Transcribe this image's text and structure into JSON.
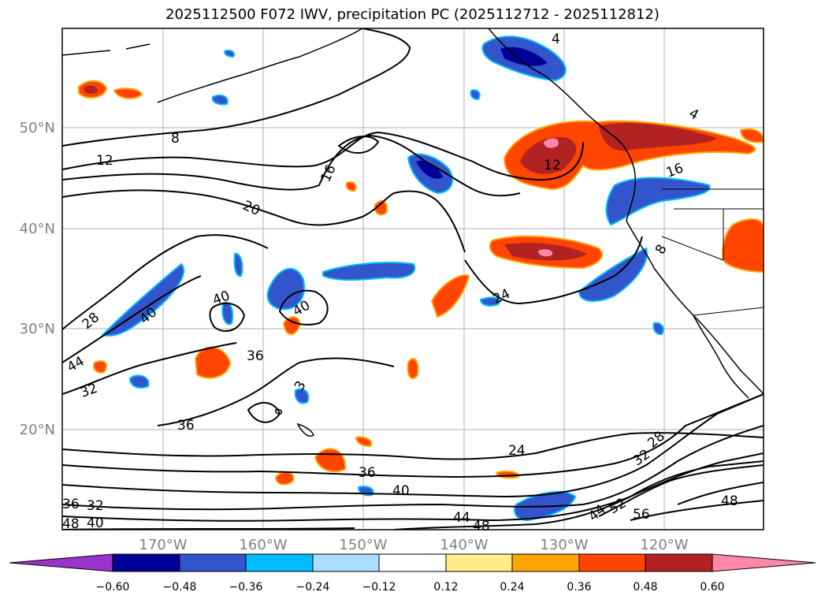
{
  "title": "2025112500 F072 IWV, precipitation PC (2025112712 - 2025112812)",
  "map": {
    "lat_labels": [
      "50°N",
      "40°N",
      "30°N",
      "20°N"
    ],
    "lon_labels": [
      "170°W",
      "160°W",
      "150°W",
      "140°W",
      "130°W",
      "120°W"
    ],
    "gridlines": true,
    "contour_labels": [
      "8",
      "12",
      "16",
      "20",
      "24",
      "28",
      "32",
      "36",
      "40",
      "44",
      "48",
      "52",
      "56",
      "4",
      "16",
      "8",
      "3"
    ]
  },
  "colorbar": {
    "ticks": [
      "−0.60",
      "−0.48",
      "−0.36",
      "−0.24",
      "−0.12",
      "0.12",
      "0.24",
      "0.36",
      "0.48",
      "0.60"
    ],
    "colors": [
      "#9933cc",
      "#000099",
      "#3355cc",
      "#00bbff",
      "#aaddff",
      "#ffffff",
      "#ffee88",
      "#ffa500",
      "#ff4500",
      "#b22222",
      "#ff88aa"
    ],
    "extend": "both"
  }
}
